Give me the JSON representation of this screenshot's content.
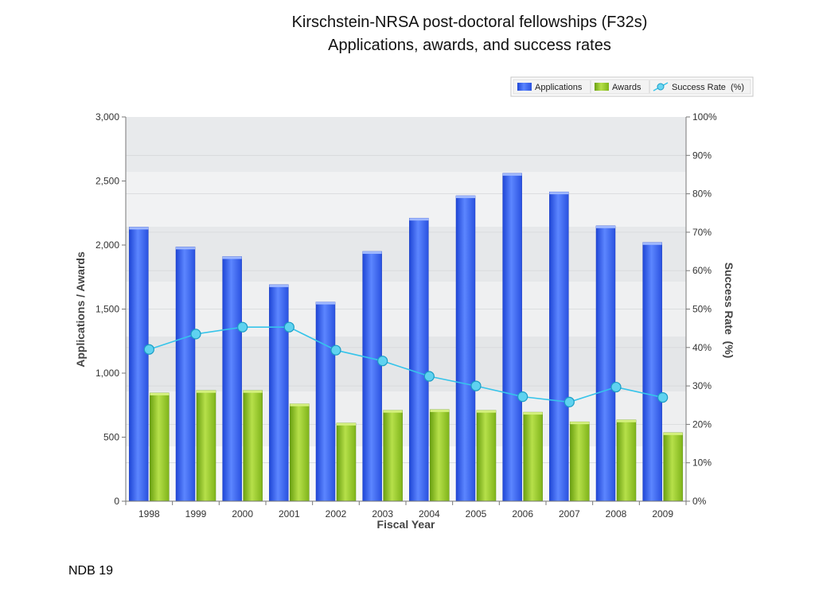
{
  "title_line1": "Kirschstein-NRSA post-doctoral fellowships (F32s)",
  "title_line2": "Applications, awards, and success rates",
  "footer": "NDB 19",
  "chart_data": {
    "type": "bar",
    "title": "Kirschstein-NRSA post-doctoral fellowships (F32s) Applications, awards, and success rates",
    "xlabel": "Fiscal Year",
    "ylabel": "Applications / Awards",
    "y2label": "Success Rate  (%)",
    "ylim": [
      0,
      3000
    ],
    "y2lim": [
      0,
      100
    ],
    "yticks": [
      "0",
      "500",
      "1,000",
      "1,500",
      "2,000",
      "2,500",
      "3,000"
    ],
    "y2ticks": [
      "0%",
      "10%",
      "20%",
      "30%",
      "40%",
      "50%",
      "60%",
      "70%",
      "80%",
      "90%",
      "100%"
    ],
    "categories": [
      "1998",
      "1999",
      "2000",
      "2001",
      "2002",
      "2003",
      "2004",
      "2005",
      "2006",
      "2007",
      "2008",
      "2009"
    ],
    "legend_position": "top-right",
    "series": [
      {
        "name": "Applications",
        "type": "bar",
        "axis": "left",
        "color": "#2f5fe8",
        "values": [
          2140,
          1985,
          1910,
          1690,
          1555,
          1950,
          2210,
          2385,
          2560,
          2415,
          2150,
          2020
        ]
      },
      {
        "name": "Awards",
        "type": "bar",
        "axis": "left",
        "color": "#8cc01e",
        "values": [
          845,
          865,
          865,
          760,
          610,
          710,
          715,
          710,
          695,
          620,
          635,
          535
        ]
      },
      {
        "name": "Success Rate  (%)",
        "type": "line",
        "axis": "right",
        "color": "#35c4ea",
        "values": [
          39.5,
          43.5,
          45.3,
          45.3,
          39.3,
          36.5,
          32.5,
          30.0,
          27.2,
          25.8,
          29.7,
          27.0
        ]
      }
    ]
  }
}
